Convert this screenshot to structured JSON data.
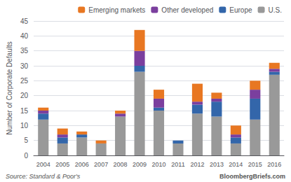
{
  "chart_data": {
    "type": "bar",
    "categories": [
      "2004",
      "2005",
      "2006",
      "2007",
      "2008",
      "2009",
      "2010",
      "2011",
      "2012",
      "2013",
      "2014",
      "2015",
      "2016"
    ],
    "series": [
      {
        "name": "U.S.",
        "color": "#999999",
        "values": [
          12,
          4,
          6,
          4,
          13,
          28,
          15,
          4,
          14,
          13,
          4,
          12,
          27
        ]
      },
      {
        "name": "Europe",
        "color": "#3366AA",
        "values": [
          2,
          2,
          1,
          0,
          0,
          2,
          1,
          1,
          3,
          5,
          2,
          7,
          1
        ]
      },
      {
        "name": "Other developed",
        "color": "#7B3F9E",
        "values": [
          1,
          1,
          0,
          0,
          1,
          5,
          3,
          0,
          1,
          1,
          1,
          3,
          1
        ]
      },
      {
        "name": "Emerging markets",
        "color": "#E87722",
        "values": [
          1,
          2,
          1,
          1,
          1,
          7,
          3,
          0,
          6,
          2,
          3,
          3,
          2
        ]
      }
    ],
    "ylabel": "Number of Corporate Defaults",
    "ylim": [
      0,
      45
    ],
    "yticks": [
      0,
      5,
      10,
      15,
      20,
      25,
      30,
      35,
      40,
      45
    ],
    "stacked": true,
    "grid": true,
    "legend": "upper right",
    "annotations": [
      "Source: Standard & Poor's",
      "BloombergBriefs.com"
    ]
  }
}
